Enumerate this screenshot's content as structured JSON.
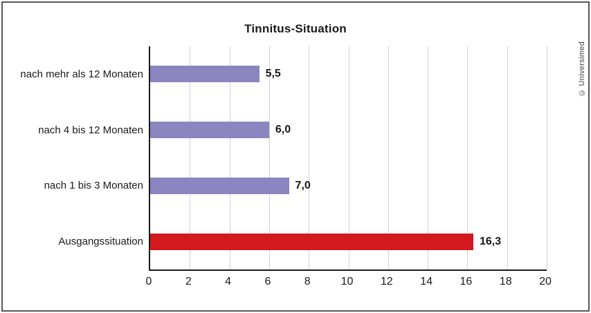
{
  "credit": "© Universimed",
  "colors": {
    "bar_purple": "#8b86bf",
    "bar_red": "#d2191e",
    "gridline": "#d2d2d2",
    "axis": "#1a1a1a",
    "frame_border": "#58585a",
    "text": "#1a1a1a"
  },
  "chart_data": {
    "type": "bar",
    "orientation": "horizontal",
    "title": "Tinnitus-Situation",
    "categories": [
      "nach mehr als 12 Monaten",
      "nach 4 bis 12 Monaten",
      "nach 1 bis 3 Monaten",
      "Ausgangssituation"
    ],
    "values": [
      5.5,
      6.0,
      7.0,
      16.3
    ],
    "value_labels": [
      "5,5",
      "6,0",
      "7,0",
      "16,3"
    ],
    "bar_colors": [
      "#8b86bf",
      "#8b86bf",
      "#8b86bf",
      "#d2191e"
    ],
    "xlabel": "",
    "ylabel": "",
    "xlim": [
      0,
      20
    ],
    "xticks": [
      0,
      2,
      4,
      6,
      8,
      10,
      12,
      14,
      16,
      18,
      20
    ],
    "grid": "vertical",
    "legend": "none"
  }
}
